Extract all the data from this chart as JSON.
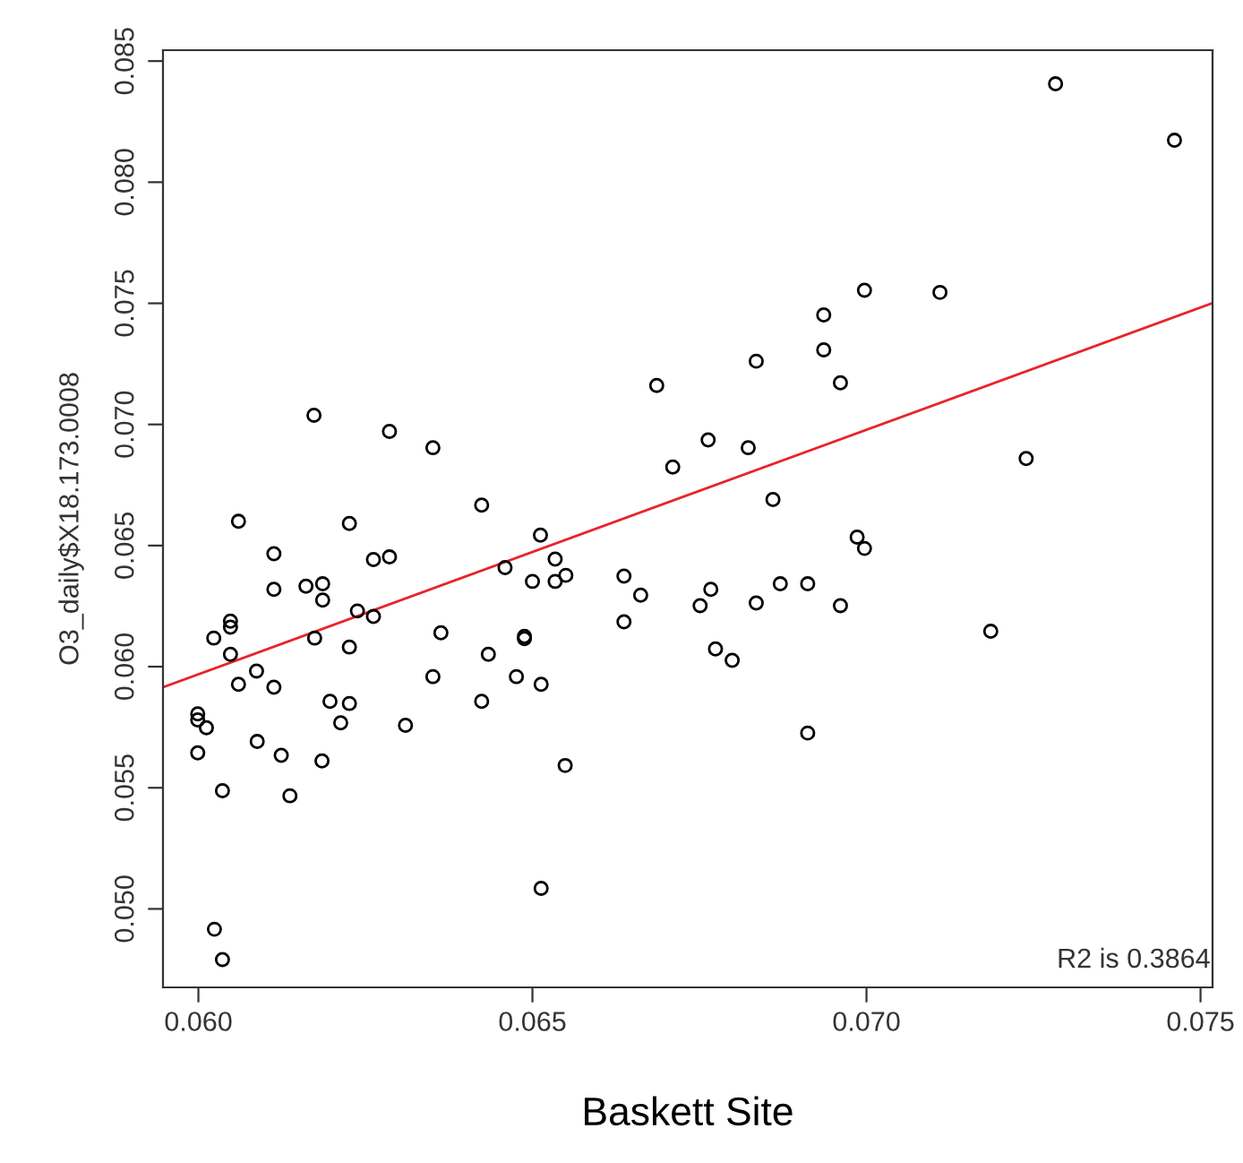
{
  "chart_data": {
    "type": "scatter",
    "xlabel": "Baskett Site",
    "ylabel": "O3_daily$X18.173.0008",
    "annotations": [
      "R2 is 0.3864"
    ],
    "grid": false,
    "xlim": [
      0.05947,
      0.07518
    ],
    "ylim": [
      0.04676,
      0.08545
    ],
    "xticks": [
      {
        "value": 0.06,
        "label": "0.060"
      },
      {
        "value": 0.065,
        "label": "0.065"
      },
      {
        "value": 0.07,
        "label": "0.070"
      },
      {
        "value": 0.075,
        "label": "0.075"
      }
    ],
    "yticks": [
      {
        "value": 0.05,
        "label": "0.050"
      },
      {
        "value": 0.055,
        "label": "0.055"
      },
      {
        "value": 0.06,
        "label": "0.060"
      },
      {
        "value": 0.065,
        "label": "0.065"
      },
      {
        "value": 0.07,
        "label": "0.070"
      },
      {
        "value": 0.075,
        "label": "0.075"
      },
      {
        "value": 0.08,
        "label": "0.080"
      },
      {
        "value": 0.085,
        "label": "0.085"
      }
    ],
    "series": [
      {
        "marker": "circle",
        "color": "#000000",
        "x": [
          0.06173,
          0.06286,
          0.06351,
          0.06424,
          0.0606,
          0.06226,
          0.06512,
          0.06113,
          0.06262,
          0.06286,
          0.06459,
          0.06534,
          0.06113,
          0.06161,
          0.06186,
          0.06186,
          0.065,
          0.06534,
          0.0655,
          0.06048,
          0.06048,
          0.06023,
          0.06048,
          0.06174,
          0.06226,
          0.06238,
          0.06262,
          0.06363,
          0.06434,
          0.06488,
          0.06488,
          0.06087,
          0.0606,
          0.06113,
          0.06351,
          0.06476,
          0.06513,
          0.06197,
          0.06226,
          0.06424,
          0.05999,
          0.05999,
          0.06012,
          0.06213,
          0.0631,
          0.06088,
          0.05999,
          0.06124,
          0.06185,
          0.06036,
          0.06137,
          0.06513,
          0.06024,
          0.06036,
          0.06997,
          0.06936,
          0.06835,
          0.06936,
          0.06961,
          0.06686,
          0.06763,
          0.06823,
          0.0671,
          0.0686,
          0.06986,
          0.06997,
          0.06637,
          0.06662,
          0.06637,
          0.06767,
          0.06751,
          0.06835,
          0.06871,
          0.06912,
          0.06961,
          0.06774,
          0.06799,
          0.06912,
          0.06549,
          0.07283,
          0.07461,
          0.0711,
          0.07239,
          0.07186
        ],
        "values": [
          0.07038,
          0.06971,
          0.06904,
          0.06667,
          0.066,
          0.06591,
          0.06543,
          0.06466,
          0.06442,
          0.06453,
          0.06409,
          0.06444,
          0.06319,
          0.06332,
          0.06342,
          0.06275,
          0.06352,
          0.06352,
          0.06377,
          0.06188,
          0.06163,
          0.06118,
          0.06051,
          0.06118,
          0.06081,
          0.0623,
          0.06207,
          0.0614,
          0.06051,
          0.06125,
          0.06116,
          0.05982,
          0.05927,
          0.05915,
          0.05959,
          0.05959,
          0.05927,
          0.05857,
          0.05848,
          0.05857,
          0.05805,
          0.0578,
          0.05748,
          0.05768,
          0.05758,
          0.05691,
          0.05644,
          0.05634,
          0.05611,
          0.05488,
          0.05467,
          0.05085,
          0.04916,
          0.04791,
          0.07554,
          0.07452,
          0.07261,
          0.07308,
          0.07172,
          0.07161,
          0.06936,
          0.06904,
          0.06824,
          0.0669,
          0.06535,
          0.06488,
          0.06374,
          0.06295,
          0.06185,
          0.06319,
          0.06252,
          0.06263,
          0.06342,
          0.06342,
          0.06252,
          0.06073,
          0.06026,
          0.05726,
          0.05592,
          0.08406,
          0.08173,
          0.07545,
          0.06859,
          0.06146
        ]
      },
      {
        "type": "line",
        "marker": "none",
        "color": "#e8242a",
        "x": [
          0.05947,
          0.07517
        ],
        "values": [
          0.05915,
          0.075
        ]
      }
    ]
  }
}
